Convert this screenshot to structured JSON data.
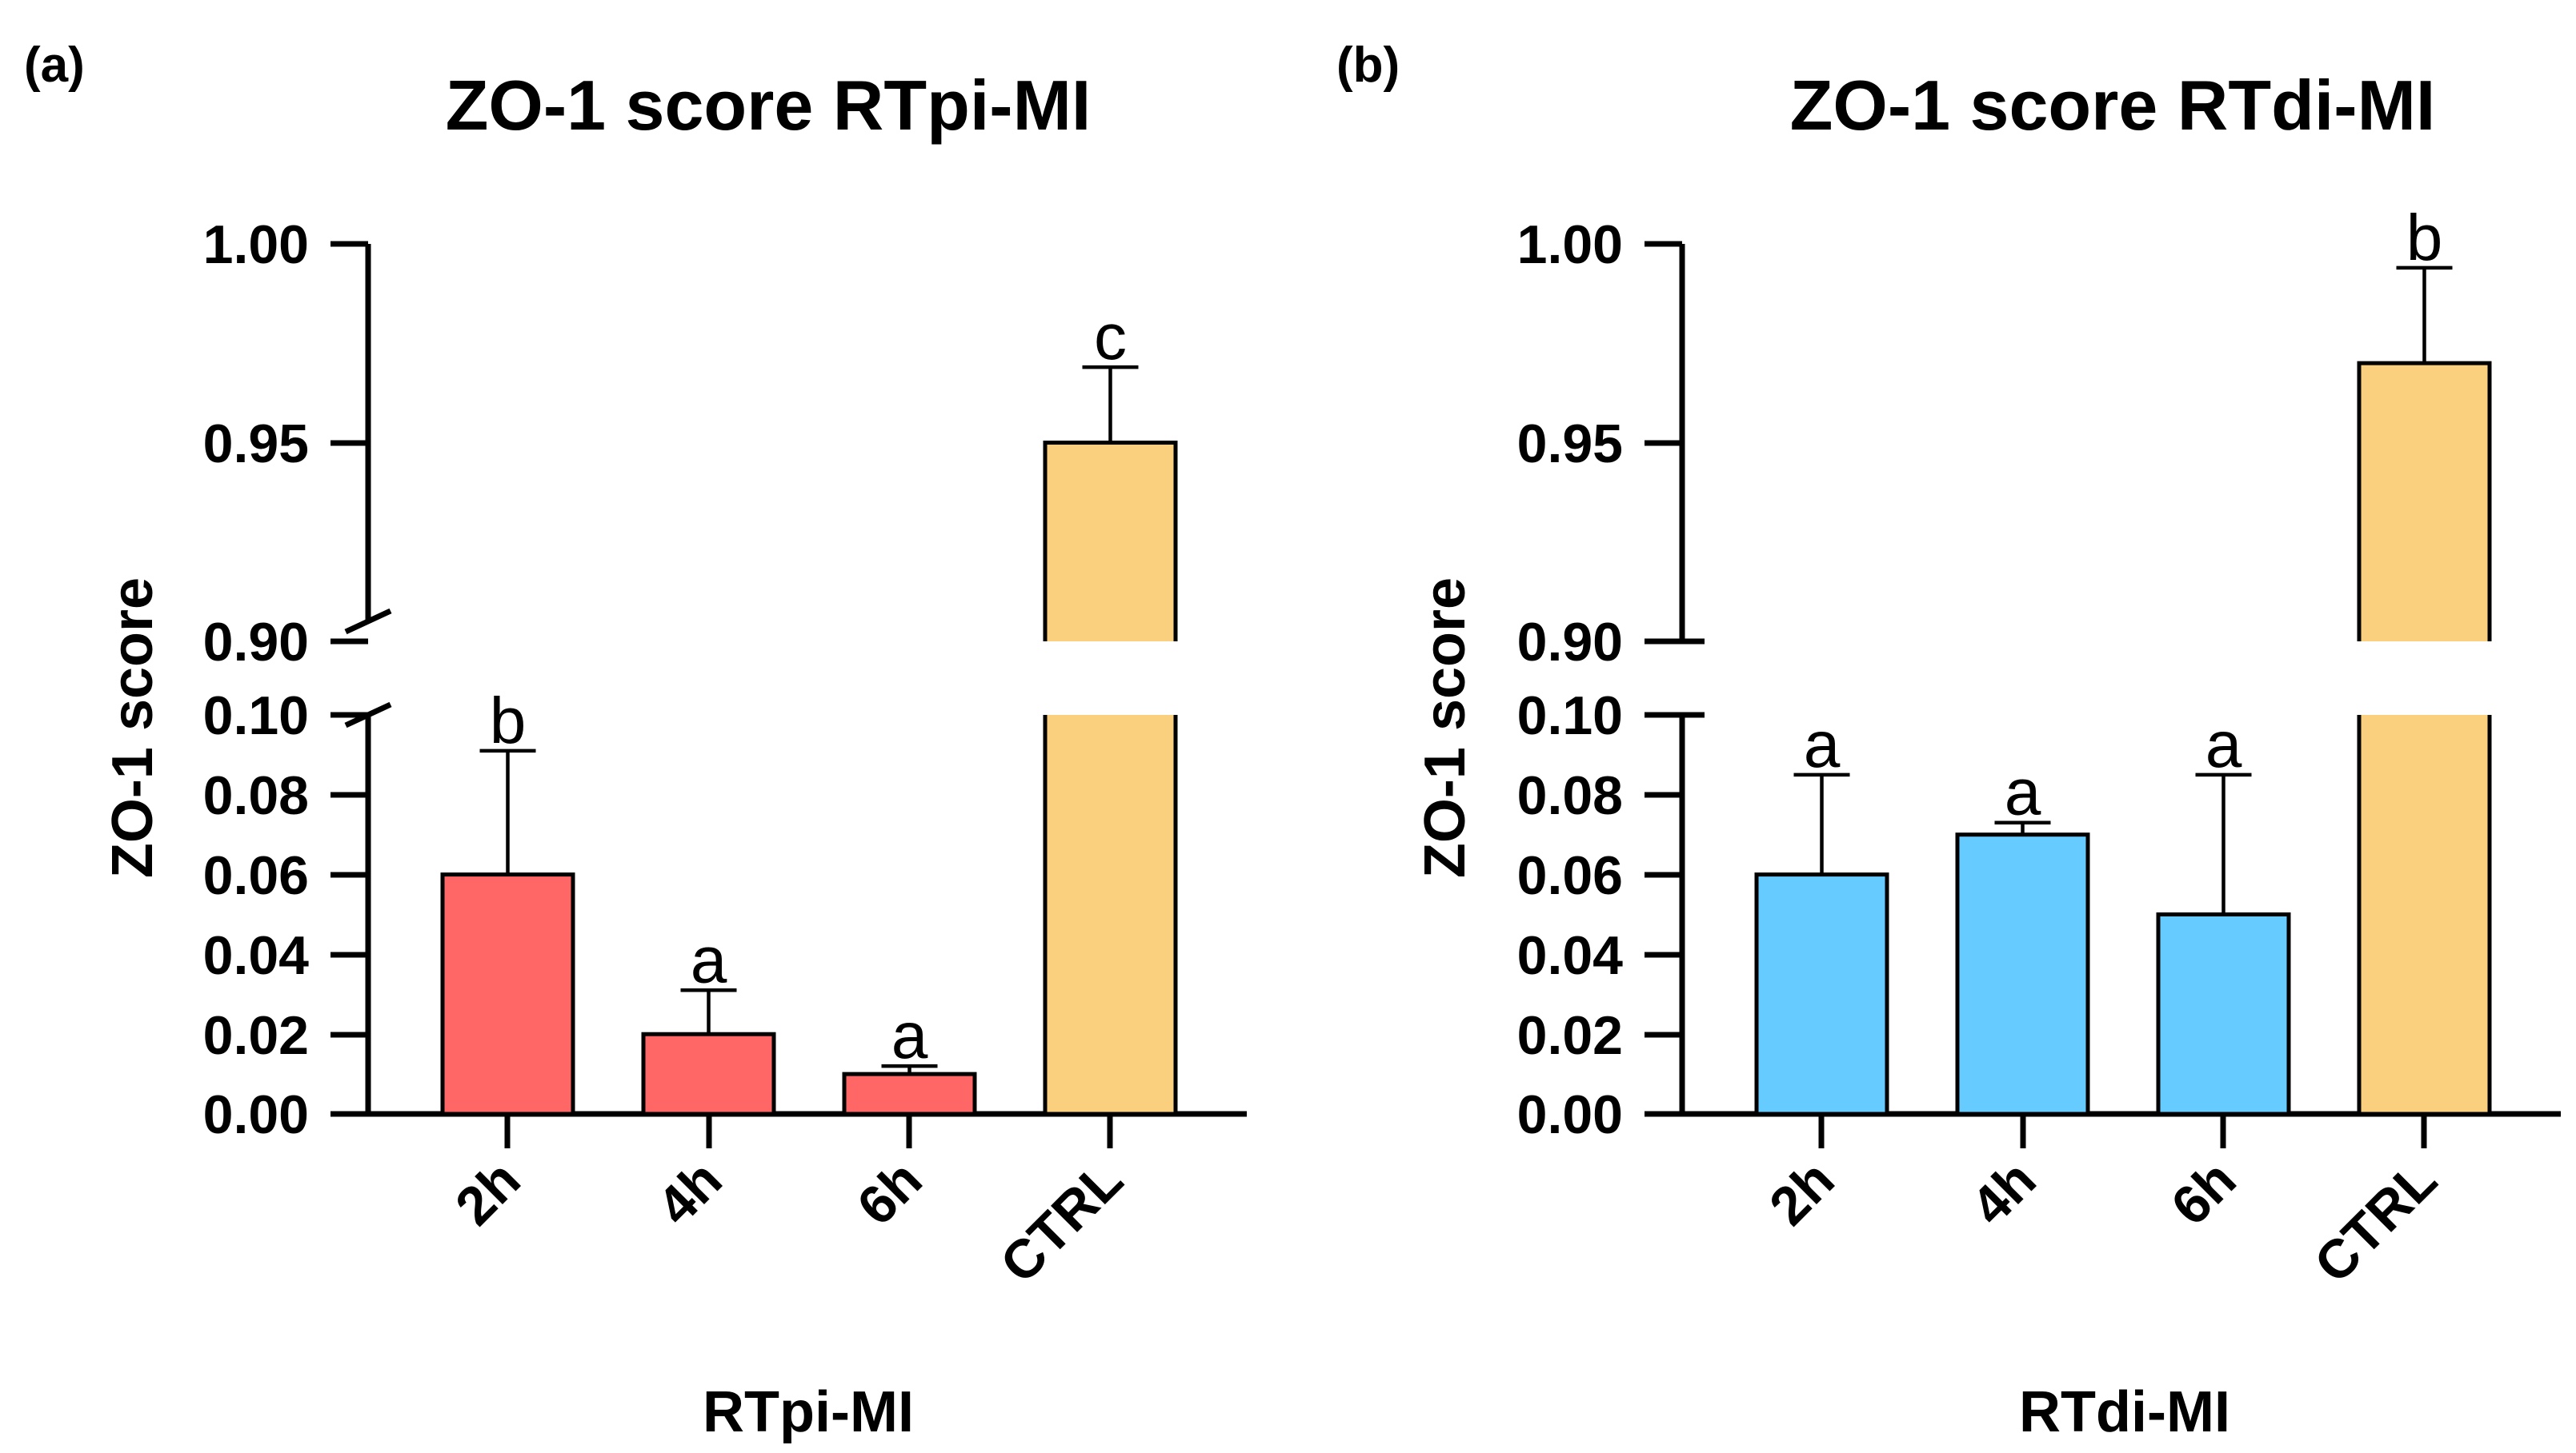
{
  "chart_data": [
    {
      "type": "bar",
      "panel_label": "(a)",
      "title": "ZO-1 score RTpi-MI",
      "xlabel": "RTpi-MI",
      "ylabel": "ZO-1 score",
      "categories": [
        "2h",
        "4h",
        "6h",
        "CTRL"
      ],
      "values": [
        0.06,
        0.02,
        0.01,
        0.95
      ],
      "errors": [
        0.031,
        0.011,
        0.002,
        0.019
      ],
      "significance": [
        "b",
        "a",
        "a",
        "c"
      ],
      "colors": [
        "#FF6666",
        "#FF6666",
        "#FF6666",
        "#FAD07E"
      ],
      "y_axis_break": true,
      "ylim_lower": [
        0.0,
        0.1
      ],
      "ylim_upper": [
        0.9,
        1.0
      ],
      "yticks_lower": [
        "0.00",
        "0.02",
        "0.04",
        "0.06",
        "0.08",
        "0.10"
      ],
      "yticks_upper": [
        "0.90",
        "0.95",
        "1.00"
      ]
    },
    {
      "type": "bar",
      "panel_label": "(b)",
      "title": "ZO-1 score RTdi-MI",
      "xlabel": "RTdi-MI",
      "ylabel": "ZO-1 score",
      "categories": [
        "2h",
        "4h",
        "6h",
        "CTRL"
      ],
      "values": [
        0.06,
        0.07,
        0.05,
        0.97
      ],
      "errors": [
        0.025,
        0.003,
        0.035,
        0.024
      ],
      "significance": [
        "a",
        "a",
        "a",
        "b"
      ],
      "colors": [
        "#66CCFF",
        "#66CCFF",
        "#66CCFF",
        "#FAD07E"
      ],
      "y_axis_break": true,
      "ylim_lower": [
        0.0,
        0.1
      ],
      "ylim_upper": [
        0.9,
        1.0
      ],
      "yticks_lower": [
        "0.00",
        "0.02",
        "0.04",
        "0.06",
        "0.08",
        "0.10"
      ],
      "yticks_upper": [
        "0.90",
        "0.95",
        "1.00"
      ]
    }
  ]
}
